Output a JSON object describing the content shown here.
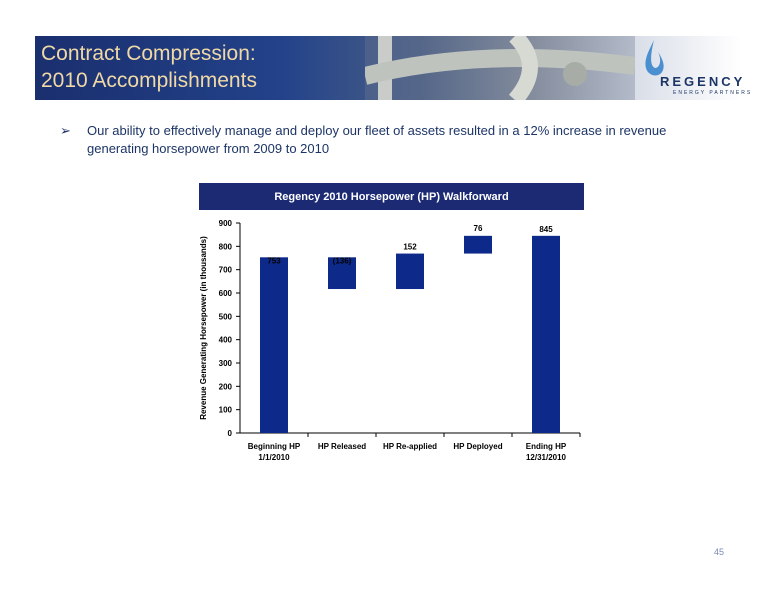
{
  "slide": {
    "title_line1": "Contract Compression:",
    "title_line2": "2010 Accomplishments",
    "bullet": "Our ability to effectively manage and deploy our fleet of assets resulted in a 12% increase in revenue generating horsepower from 2009 to 2010",
    "page_number": "45"
  },
  "logo": {
    "name": "REGENCY",
    "subtitle": "ENERGY PARTNERS"
  },
  "colors": {
    "bar": "#0d2a8a",
    "title_bar": "#1b2a73",
    "title_text": "#f0d9a6"
  },
  "chart_data": {
    "type": "bar",
    "subtype": "waterfall",
    "title": "Regency 2010 Horsepower (HP) Walkforward",
    "ylabel": "Revenue Generating Horsepower (in thousands)",
    "xlabel": "",
    "ylim": [
      0,
      900
    ],
    "yticks": [
      0,
      100,
      200,
      300,
      400,
      500,
      600,
      700,
      800,
      900
    ],
    "categories": [
      [
        "Beginning HP",
        "1/1/2010"
      ],
      [
        "HP Released"
      ],
      [
        "HP Re-applied"
      ],
      [
        "HP Deployed"
      ],
      [
        "Ending HP",
        "12/31/2010"
      ]
    ],
    "bars": [
      {
        "base": 0,
        "top": 753,
        "label": "753"
      },
      {
        "base": 617,
        "top": 753,
        "label": "(136)"
      },
      {
        "base": 617,
        "top": 769,
        "label": "152"
      },
      {
        "base": 769,
        "top": 845,
        "label": "76"
      },
      {
        "base": 0,
        "top": 845,
        "label": "845"
      }
    ],
    "grid": false,
    "legend": "none"
  }
}
